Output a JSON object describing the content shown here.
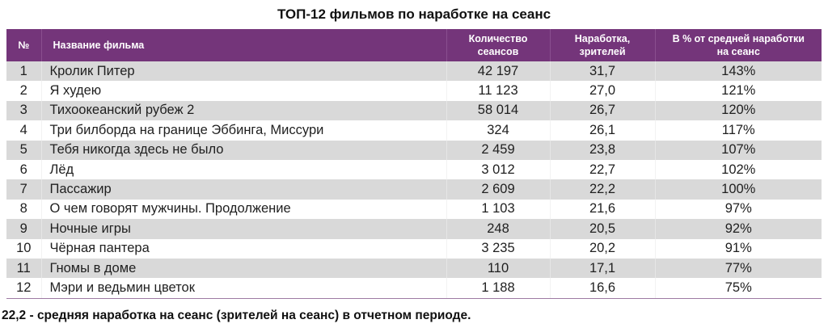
{
  "title": "ТОП-12 фильмов по наработке на сеанс",
  "table": {
    "headers": {
      "num": "№",
      "name": "Название фильма",
      "sessions_line1": "Количество",
      "sessions_line2": "сеансов",
      "perf_line1": "Наработка,",
      "perf_line2": "зрителей",
      "pct_line1": "В % от средней наработки",
      "pct_line2": "на сеанс"
    },
    "rows": [
      {
        "num": "1",
        "name": "Кролик Питер",
        "sessions": "42 197",
        "perf": "31,7",
        "pct": "143%"
      },
      {
        "num": "2",
        "name": "Я худею",
        "sessions": "11 123",
        "perf": "27,0",
        "pct": "121%"
      },
      {
        "num": "3",
        "name": "Тихоокеанский рубеж 2",
        "sessions": "58 014",
        "perf": "26,7",
        "pct": "120%"
      },
      {
        "num": "4",
        "name": "Три билборда на границе Эббинга, Миссури",
        "sessions": "324",
        "perf": "26,1",
        "pct": "117%"
      },
      {
        "num": "5",
        "name": "Тебя никогда здесь не было",
        "sessions": "2 459",
        "perf": "23,8",
        "pct": "107%"
      },
      {
        "num": "6",
        "name": "Лёд",
        "sessions": "3 012",
        "perf": "22,7",
        "pct": "102%"
      },
      {
        "num": "7",
        "name": "Пассажир",
        "sessions": "2 609",
        "perf": "22,2",
        "pct": "100%"
      },
      {
        "num": "8",
        "name": "О чем говорят мужчины. Продолжение",
        "sessions": "1 103",
        "perf": "21,6",
        "pct": "97%"
      },
      {
        "num": "9",
        "name": "Ночные игры",
        "sessions": "248",
        "perf": "20,5",
        "pct": "92%"
      },
      {
        "num": "10",
        "name": "Чёрная пантера",
        "sessions": "3 235",
        "perf": "20,2",
        "pct": "91%"
      },
      {
        "num": "11",
        "name": "Гномы в доме",
        "sessions": "110",
        "perf": "17,1",
        "pct": "77%"
      },
      {
        "num": "12",
        "name": "Мэри и ведьмин цветок",
        "sessions": "1 188",
        "perf": "16,6",
        "pct": "75%"
      }
    ]
  },
  "footer": "22,2 - средняя наработка на сеанс (зрителей на сеанс) в отчетном периоде.",
  "colors": {
    "header_bg": "#74357a",
    "header_text": "#ffffff",
    "row_alt_bg": "#d9d9d9",
    "row_bg": "#ffffff",
    "bottom_border": "#9e7aa3"
  }
}
